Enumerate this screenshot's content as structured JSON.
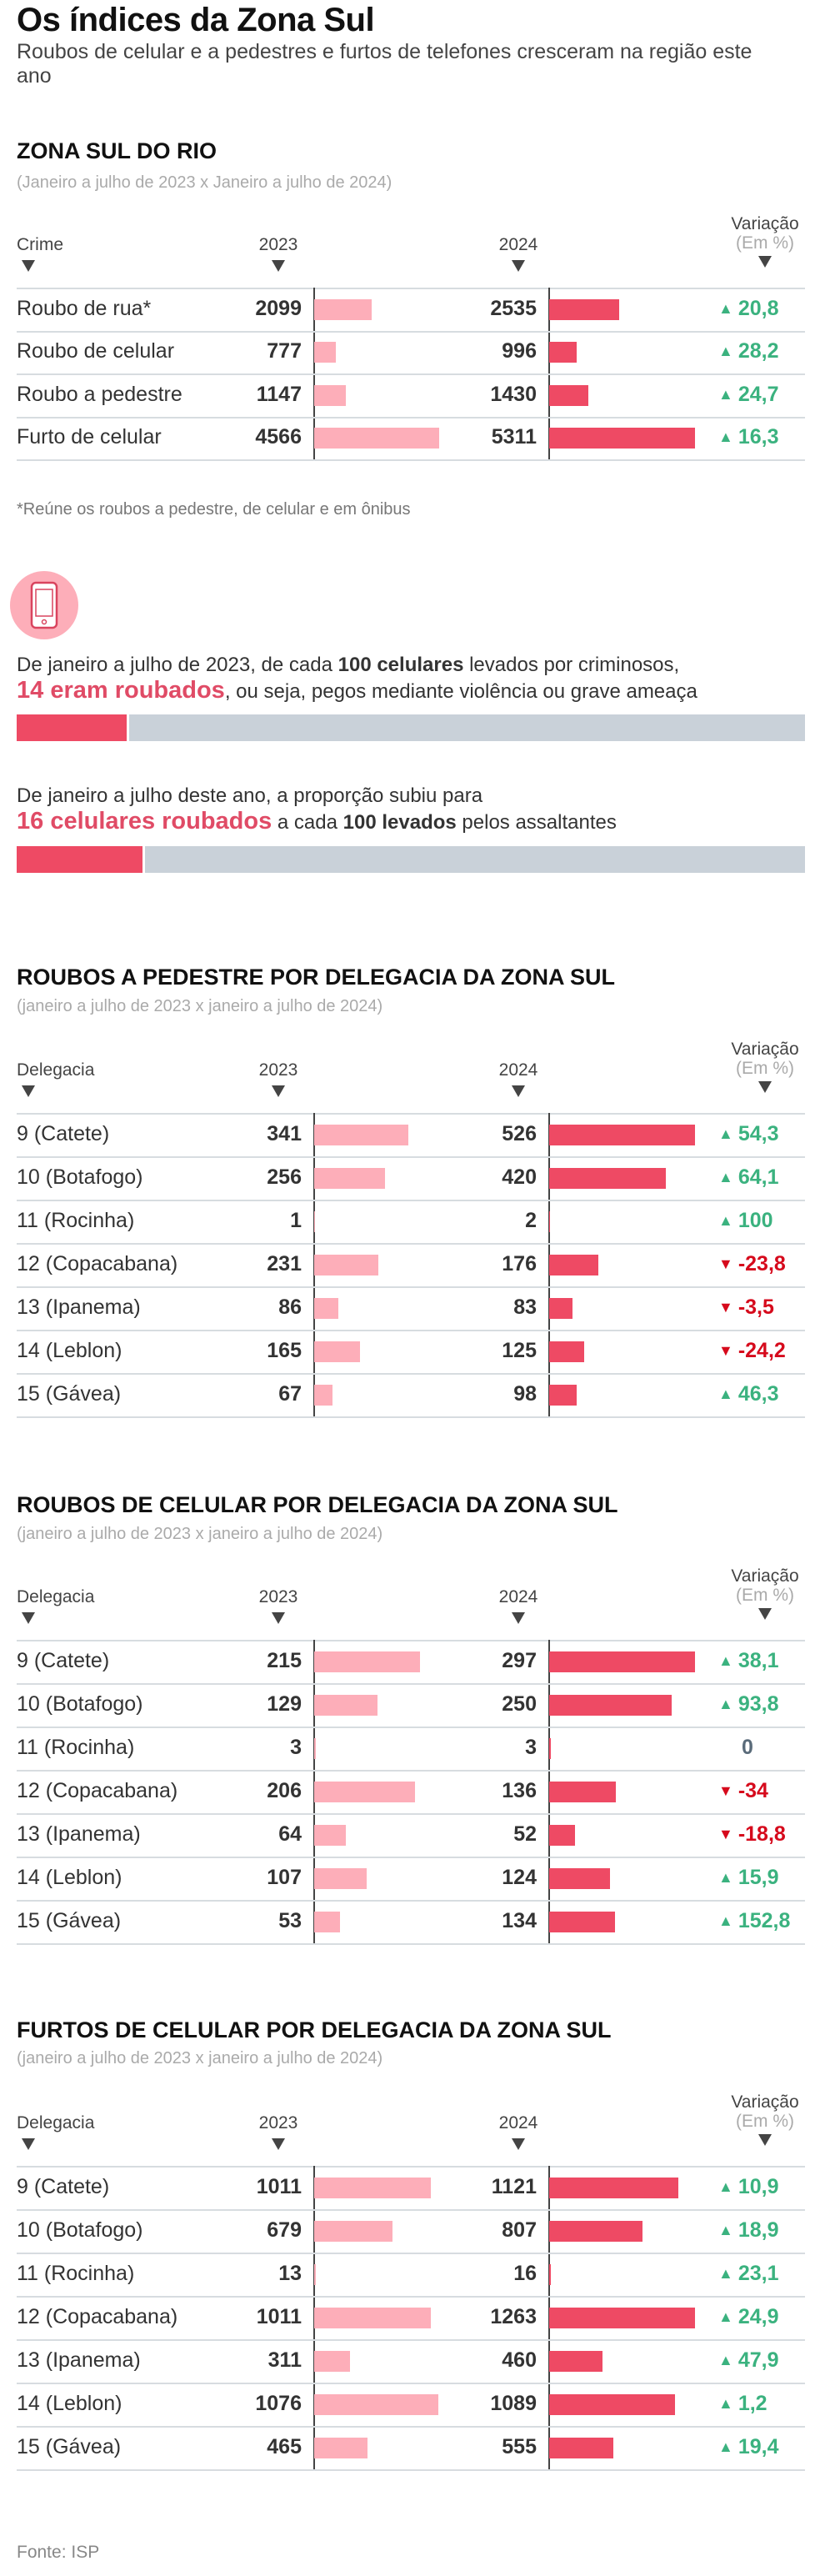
{
  "header": {
    "title": "Os índices da Zona Sul",
    "subtitle": "Roubos de celular e a pedestres e furtos de telefones cresceram na região este ano"
  },
  "colors": {
    "bar_2023": "#fdaeb9",
    "bar_2024": "#ee4a64",
    "increase": "#3bb27f",
    "decrease": "#d60a1c",
    "neutral": "#5a6b7a",
    "proportion_track": "#c9d1d9"
  },
  "sections": [
    {
      "title": "ZONA SUL DO RIO",
      "subtitle": "(Janeiro a julho de 2023 x Janeiro a julho de 2024)",
      "headers": {
        "label": "Crime",
        "y2023": "2023",
        "y2024": "2024",
        "variation": "Variação",
        "variation_unit": "(Em %)"
      },
      "rows": [
        {
          "label": "Roubo de rua*",
          "v2023": 2099,
          "v2024": 2535,
          "variation": "20,8",
          "trend": "up"
        },
        {
          "label": "Roubo de celular",
          "v2023": 777,
          "v2024": 996,
          "variation": "28,2",
          "trend": "up"
        },
        {
          "label": "Roubo a pedestre",
          "v2023": 1147,
          "v2024": 1430,
          "variation": "24,7",
          "trend": "up"
        },
        {
          "label": "Furto de celular",
          "v2023": 4566,
          "v2024": 5311,
          "variation": "16,3",
          "trend": "up"
        }
      ],
      "note": "*Reúne os roubos a pedestre, de celular e em ônibus"
    },
    {
      "title": "ROUBOS A PEDESTRE POR DELEGACIA DA ZONA SUL",
      "subtitle": "(janeiro a julho de 2023 x janeiro a julho de 2024)",
      "headers": {
        "label": "Delegacia",
        "y2023": "2023",
        "y2024": "2024",
        "variation": "Variação",
        "variation_unit": "(Em %)"
      },
      "rows": [
        {
          "label": "9 (Catete)",
          "v2023": 341,
          "v2024": 526,
          "variation": "54,3",
          "trend": "up"
        },
        {
          "label": "10 (Botafogo)",
          "v2023": 256,
          "v2024": 420,
          "variation": "64,1",
          "trend": "up"
        },
        {
          "label": "11 (Rocinha)",
          "v2023": 1,
          "v2024": 2,
          "variation": "100",
          "trend": "up"
        },
        {
          "label": "12 (Copacabana)",
          "v2023": 231,
          "v2024": 176,
          "variation": "-23,8",
          "trend": "down"
        },
        {
          "label": "13 (Ipanema)",
          "v2023": 86,
          "v2024": 83,
          "variation": "-3,5",
          "trend": "down"
        },
        {
          "label": "14 (Leblon)",
          "v2023": 165,
          "v2024": 125,
          "variation": "-24,2",
          "trend": "down"
        },
        {
          "label": "15 (Gávea)",
          "v2023": 67,
          "v2024": 98,
          "variation": "46,3",
          "trend": "up"
        }
      ]
    },
    {
      "title": "ROUBOS DE CELULAR POR DELEGACIA DA ZONA SUL",
      "subtitle": "(janeiro a julho de 2023 x janeiro a julho de 2024)",
      "headers": {
        "label": "Delegacia",
        "y2023": "2023",
        "y2024": "2024",
        "variation": "Variação",
        "variation_unit": "(Em %)"
      },
      "rows": [
        {
          "label": "9 (Catete)",
          "v2023": 215,
          "v2024": 297,
          "variation": "38,1",
          "trend": "up"
        },
        {
          "label": "10 (Botafogo)",
          "v2023": 129,
          "v2024": 250,
          "variation": "93,8",
          "trend": "up"
        },
        {
          "label": "11 (Rocinha)",
          "v2023": 3,
          "v2024": 3,
          "variation": "0",
          "trend": "zero"
        },
        {
          "label": "12 (Copacabana)",
          "v2023": 206,
          "v2024": 136,
          "variation": "-34",
          "trend": "down"
        },
        {
          "label": "13 (Ipanema)",
          "v2023": 64,
          "v2024": 52,
          "variation": "-18,8",
          "trend": "down"
        },
        {
          "label": "14 (Leblon)",
          "v2023": 107,
          "v2024": 124,
          "variation": "15,9",
          "trend": "up"
        },
        {
          "label": "15 (Gávea)",
          "v2023": 53,
          "v2024": 134,
          "variation": "152,8",
          "trend": "up"
        }
      ]
    },
    {
      "title": "FURTOS DE CELULAR POR DELEGACIA DA ZONA SUL",
      "subtitle": "(janeiro a julho de 2023 x janeiro a julho de 2024)",
      "headers": {
        "label": "Delegacia",
        "y2023": "2023",
        "y2024": "2024",
        "variation": "Variação",
        "variation_unit": "(Em %)"
      },
      "rows": [
        {
          "label": "9 (Catete)",
          "v2023": 1011,
          "v2024": 1121,
          "variation": "10,9",
          "trend": "up"
        },
        {
          "label": "10 (Botafogo)",
          "v2023": 679,
          "v2024": 807,
          "variation": "18,9",
          "trend": "up"
        },
        {
          "label": "11 (Rocinha)",
          "v2023": 13,
          "v2024": 16,
          "variation": "23,1",
          "trend": "up"
        },
        {
          "label": "12 (Copacabana)",
          "v2023": 1011,
          "v2024": 1263,
          "variation": "24,9",
          "trend": "up"
        },
        {
          "label": "13 (Ipanema)",
          "v2023": 311,
          "v2024": 460,
          "variation": "47,9",
          "trend": "up"
        },
        {
          "label": "14 (Leblon)",
          "v2023": 1076,
          "v2024": 1089,
          "variation": "1,2",
          "trend": "up"
        },
        {
          "label": "15 (Gávea)",
          "v2023": 465,
          "v2024": 555,
          "variation": "19,4",
          "trend": "up"
        }
      ]
    }
  ],
  "proportion": {
    "icon": "smartphone-icon",
    "p2023": {
      "text_a": "De janeiro a julho de 2023, de cada ",
      "bold_a": "100 celulares",
      "text_b": " levados por criminosos,",
      "highlight": "14 eram roubados",
      "text_c": ", ou seja, pegos mediante violência ou grave ameaça",
      "value": 14,
      "total": 100
    },
    "p2024": {
      "text_a": "De janeiro a julho deste ano, a proporção subiu para",
      "highlight": "16 celulares roubados",
      "text_b": " a cada ",
      "bold_a": "100 levados",
      "text_c": " pelos assaltantes",
      "value": 16,
      "total": 100
    }
  },
  "footer": {
    "source": "Fonte: ISP"
  },
  "chart_data": [
    {
      "type": "bar",
      "title": "ZONA SUL DO RIO",
      "categories": [
        "Roubo de rua*",
        "Roubo de celular",
        "Roubo a pedestre",
        "Furto de celular"
      ],
      "series": [
        {
          "name": "2023",
          "values": [
            2099,
            777,
            1147,
            4566
          ]
        },
        {
          "name": "2024",
          "values": [
            2535,
            996,
            1430,
            5311
          ]
        },
        {
          "name": "Variação (Em %)",
          "values": [
            20.8,
            28.2,
            24.7,
            16.3
          ]
        }
      ]
    },
    {
      "type": "bar",
      "title": "ROUBOS A PEDESTRE POR DELEGACIA DA ZONA SUL",
      "categories": [
        "9 (Catete)",
        "10 (Botafogo)",
        "11 (Rocinha)",
        "12 (Copacabana)",
        "13 (Ipanema)",
        "14 (Leblon)",
        "15 (Gávea)"
      ],
      "series": [
        {
          "name": "2023",
          "values": [
            341,
            256,
            1,
            231,
            86,
            165,
            67
          ]
        },
        {
          "name": "2024",
          "values": [
            526,
            420,
            2,
            176,
            83,
            125,
            98
          ]
        },
        {
          "name": "Variação (Em %)",
          "values": [
            54.3,
            64.1,
            100,
            -23.8,
            -3.5,
            -24.2,
            46.3
          ]
        }
      ]
    },
    {
      "type": "bar",
      "title": "ROUBOS DE CELULAR POR DELEGACIA DA ZONA SUL",
      "categories": [
        "9 (Catete)",
        "10 (Botafogo)",
        "11 (Rocinha)",
        "12 (Copacabana)",
        "13 (Ipanema)",
        "14 (Leblon)",
        "15 (Gávea)"
      ],
      "series": [
        {
          "name": "2023",
          "values": [
            215,
            129,
            3,
            206,
            64,
            107,
            53
          ]
        },
        {
          "name": "2024",
          "values": [
            297,
            250,
            3,
            136,
            52,
            124,
            134
          ]
        },
        {
          "name": "Variação (Em %)",
          "values": [
            38.1,
            93.8,
            0,
            -34,
            -18.8,
            15.9,
            152.8
          ]
        }
      ]
    },
    {
      "type": "bar",
      "title": "FURTOS DE CELULAR POR DELEGACIA DA ZONA SUL",
      "categories": [
        "9 (Catete)",
        "10 (Botafogo)",
        "11 (Rocinha)",
        "12 (Copacabana)",
        "13 (Ipanema)",
        "14 (Leblon)",
        "15 (Gávea)"
      ],
      "series": [
        {
          "name": "2023",
          "values": [
            1011,
            679,
            13,
            1011,
            311,
            1076,
            465
          ]
        },
        {
          "name": "2024",
          "values": [
            1121,
            807,
            16,
            1263,
            460,
            1089,
            555
          ]
        },
        {
          "name": "Variação (Em %)",
          "values": [
            10.9,
            18.9,
            23.1,
            24.9,
            47.9,
            1.2,
            19.4
          ]
        }
      ]
    }
  ]
}
